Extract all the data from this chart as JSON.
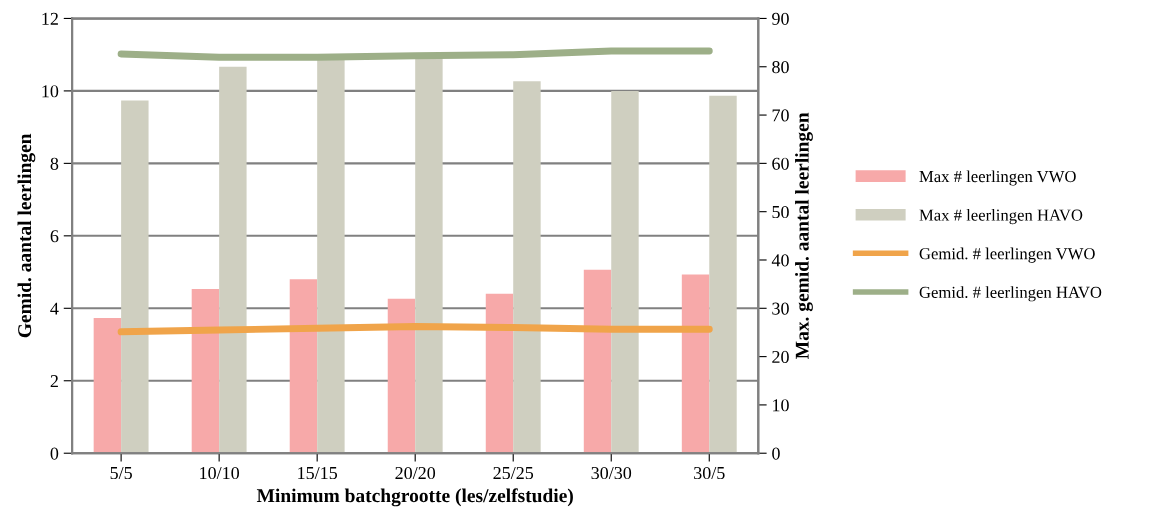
{
  "chart_data": {
    "type": "bar",
    "xlabel": "Minimum batchgrootte (les/zelfstudie)",
    "ylabel": "Gemid. aantal leerlingen",
    "y2label": "Max. gemid. aantal leerlingen",
    "categories": [
      "5/5",
      "10/10",
      "15/15",
      "20/20",
      "25/25",
      "30/30",
      "30/5"
    ],
    "series": [
      {
        "name": "Max # leerlingen VWO",
        "axis": "y2",
        "color": "#f7a9a9",
        "values": [
          28,
          34,
          36,
          32,
          33,
          38,
          37
        ]
      },
      {
        "name": "Max # leerlingen HAVO",
        "axis": "y2",
        "color": "#cfcfc0",
        "values": [
          73,
          80,
          82,
          82,
          77,
          75,
          74
        ]
      },
      {
        "name": "Gemid. # leerlingen VWO",
        "type": "line",
        "color": "#f0a44a",
        "values": [
          3.35,
          3.4,
          3.45,
          3.5,
          3.47,
          3.42,
          3.42
        ]
      },
      {
        "name": "Gemid. # leerlingen HAVO",
        "type": "line",
        "color": "#9daf88",
        "values": [
          11.02,
          10.93,
          10.93,
          10.97,
          11.0,
          11.1,
          11.1
        ]
      }
    ],
    "ylim": [
      0,
      12
    ],
    "yticks": [
      0,
      2,
      4,
      6,
      8,
      10,
      12
    ],
    "y2lim": [
      0,
      90
    ],
    "y2ticks": [
      0,
      10,
      20,
      30,
      40,
      50,
      60,
      70,
      80,
      90
    ],
    "grid": "y",
    "legend": "right",
    "marker": "none"
  }
}
